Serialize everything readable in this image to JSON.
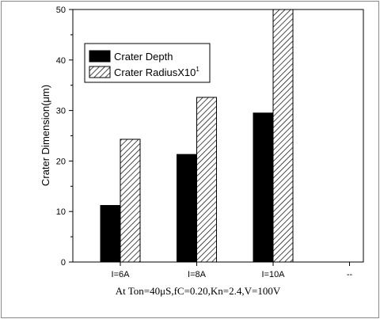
{
  "chart_data": {
    "type": "bar",
    "categories": [
      "I=6A",
      "I=8A",
      "I=10A",
      "--"
    ],
    "series": [
      {
        "name": "Crater Depth",
        "values": [
          11.2,
          21.3,
          29.5,
          null
        ],
        "color": "#000000",
        "pattern": "solid"
      },
      {
        "name": "Crater RadiusX10",
        "name_superscript": "1",
        "values": [
          24.3,
          32.6,
          50.0,
          null
        ],
        "color": "#000000",
        "pattern": "diagonal-hatch"
      }
    ],
    "xlabel": "At Ton=40μS,fC=0.20,Kn=2.4,V=100V",
    "ylabel": "Crater Dimension(μm)",
    "ylim": [
      0,
      50
    ],
    "yticks": [
      0,
      10,
      20,
      30,
      40,
      50
    ],
    "legend_position": "top-left",
    "grid": false
  }
}
